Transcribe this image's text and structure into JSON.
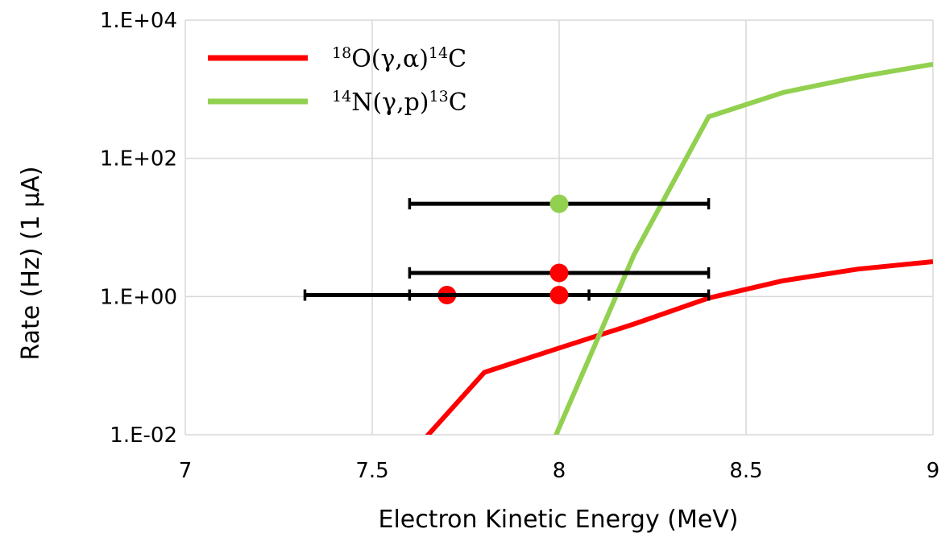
{
  "chart_data": {
    "type": "line",
    "xlabel": "Electron Kinetic Energy (MeV)",
    "ylabel": "Rate (Hz) (1 µA)",
    "x_ticks": [
      "7",
      "7.5",
      "8",
      "8.5",
      "9"
    ],
    "y_ticks": [
      "1.E-02",
      "1.E+00",
      "1.E+02",
      "1.E+04"
    ],
    "xlim": [
      7,
      9
    ],
    "ylim": [
      0.01,
      10000
    ],
    "y_scale": "log",
    "grid": true,
    "legend_position": "top-left",
    "series": [
      {
        "name": "18O(γ,α)14C",
        "label_parts": [
          {
            "text": "18",
            "sup": true
          },
          {
            "text": "O(γ,α)",
            "sup": false
          },
          {
            "text": "14",
            "sup": true
          },
          {
            "text": "C",
            "sup": false
          }
        ],
        "color": "#ff0000",
        "x": [
          7.6,
          7.8,
          8.0,
          8.2,
          8.4,
          8.6,
          8.8,
          9.0
        ],
        "y": [
          0.005,
          0.08,
          0.18,
          0.4,
          0.95,
          1.7,
          2.5,
          3.2
        ]
      },
      {
        "name": "14N(γ,p)13C",
        "label_parts": [
          {
            "text": "14",
            "sup": true
          },
          {
            "text": "N(γ,p)",
            "sup": false
          },
          {
            "text": "13",
            "sup": true
          },
          {
            "text": "C",
            "sup": false
          }
        ],
        "color": "#92d050",
        "x": [
          7.95,
          8.2,
          8.4,
          8.6,
          8.8,
          9.0
        ],
        "y": [
          0.003,
          4,
          400,
          900,
          1500,
          2300
        ]
      }
    ],
    "measurements": [
      {
        "x": 8.0,
        "y": 22,
        "xerr": [
          7.6,
          8.4
        ],
        "color": "#92d050"
      },
      {
        "x": 8.0,
        "y": 2.2,
        "xerr": [
          7.6,
          8.4
        ],
        "color": "#ff0000"
      },
      {
        "x": 7.7,
        "y": 1.05,
        "xerr": [
          7.32,
          8.08
        ],
        "color": "#ff0000"
      },
      {
        "x": 8.0,
        "y": 1.05,
        "xerr": [
          7.6,
          8.4
        ],
        "color": "#ff0000"
      }
    ]
  }
}
